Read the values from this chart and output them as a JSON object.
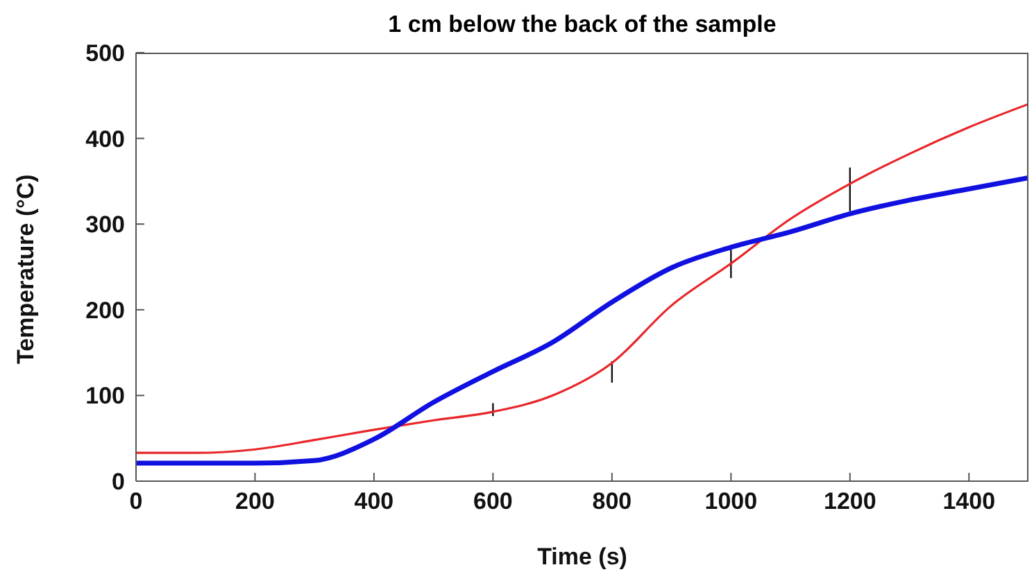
{
  "chart_data": {
    "type": "line",
    "title": "1 cm below the back of the sample",
    "xlabel": "Time (s)",
    "ylabel": "Temperature (°C)",
    "x": [
      0,
      100,
      200,
      300,
      400,
      500,
      600,
      700,
      800,
      900,
      1000,
      1100,
      1200,
      1300,
      1400,
      1500
    ],
    "series": [
      {
        "color": "#e8262a",
        "values": [
          33,
          33,
          37,
          48,
          60,
          71,
          81,
          100,
          138,
          205,
          254,
          306,
          347,
          382,
          413,
          440
        ],
        "errors": [
          null,
          null,
          null,
          null,
          null,
          null,
          [
            76,
            91
          ],
          null,
          [
            115,
            140
          ],
          null,
          [
            237,
            270
          ],
          null,
          [
            315,
            366
          ],
          null,
          null,
          null
        ]
      },
      {
        "color": "#1010e0",
        "values": [
          21,
          21,
          21,
          24,
          49,
          92,
          128,
          162,
          209,
          249,
          273,
          291,
          312,
          328,
          341,
          354
        ]
      }
    ],
    "xlim": [
      0,
      1500
    ],
    "xticks": [
      0,
      200,
      400,
      600,
      800,
      1000,
      1200,
      1400
    ],
    "ylim": [
      0,
      500
    ],
    "yticks": [
      0,
      100,
      200,
      300,
      400,
      500
    ],
    "grid": false,
    "legend": false,
    "marker": "none",
    "line_style": "solid"
  }
}
